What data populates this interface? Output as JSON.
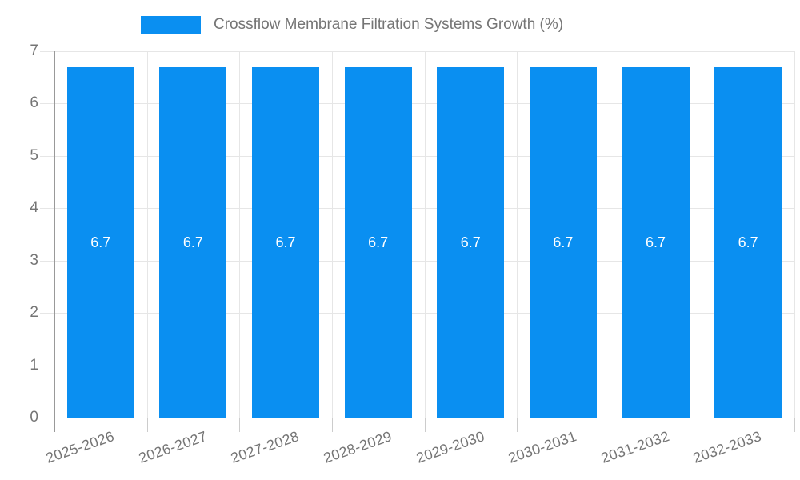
{
  "colors": {
    "bar": "#0a8ff1",
    "axis_text": "#757575",
    "legend_text": "#757575",
    "grid": "#e6e6e6",
    "tick": "#cccccc",
    "axis_line": "#999999",
    "value_text": "#ffffff",
    "background": "#ffffff"
  },
  "chart_data": {
    "type": "bar",
    "title": "Crossflow Membrane Filtration Systems Growth (%)",
    "legend": {
      "position": "top",
      "entries": [
        "Crossflow Membrane Filtration Systems Growth (%)"
      ]
    },
    "categories": [
      "2025-2026",
      "2026-2027",
      "2027-2028",
      "2028-2029",
      "2029-2030",
      "2030-2031",
      "2031-2032",
      "2032-2033"
    ],
    "series": [
      {
        "name": "Crossflow Membrane Filtration Systems Growth (%)",
        "values": [
          6.7,
          6.7,
          6.7,
          6.7,
          6.7,
          6.7,
          6.7,
          6.7
        ]
      }
    ],
    "value_labels": [
      "6.7",
      "6.7",
      "6.7",
      "6.7",
      "6.7",
      "6.7",
      "6.7",
      "6.7"
    ],
    "xlabel": "",
    "ylabel": "",
    "ylim": [
      0,
      7
    ],
    "yticks": [
      0,
      1,
      2,
      3,
      4,
      5,
      6,
      7
    ],
    "grid": true,
    "x_label_rotation_deg": -19
  }
}
